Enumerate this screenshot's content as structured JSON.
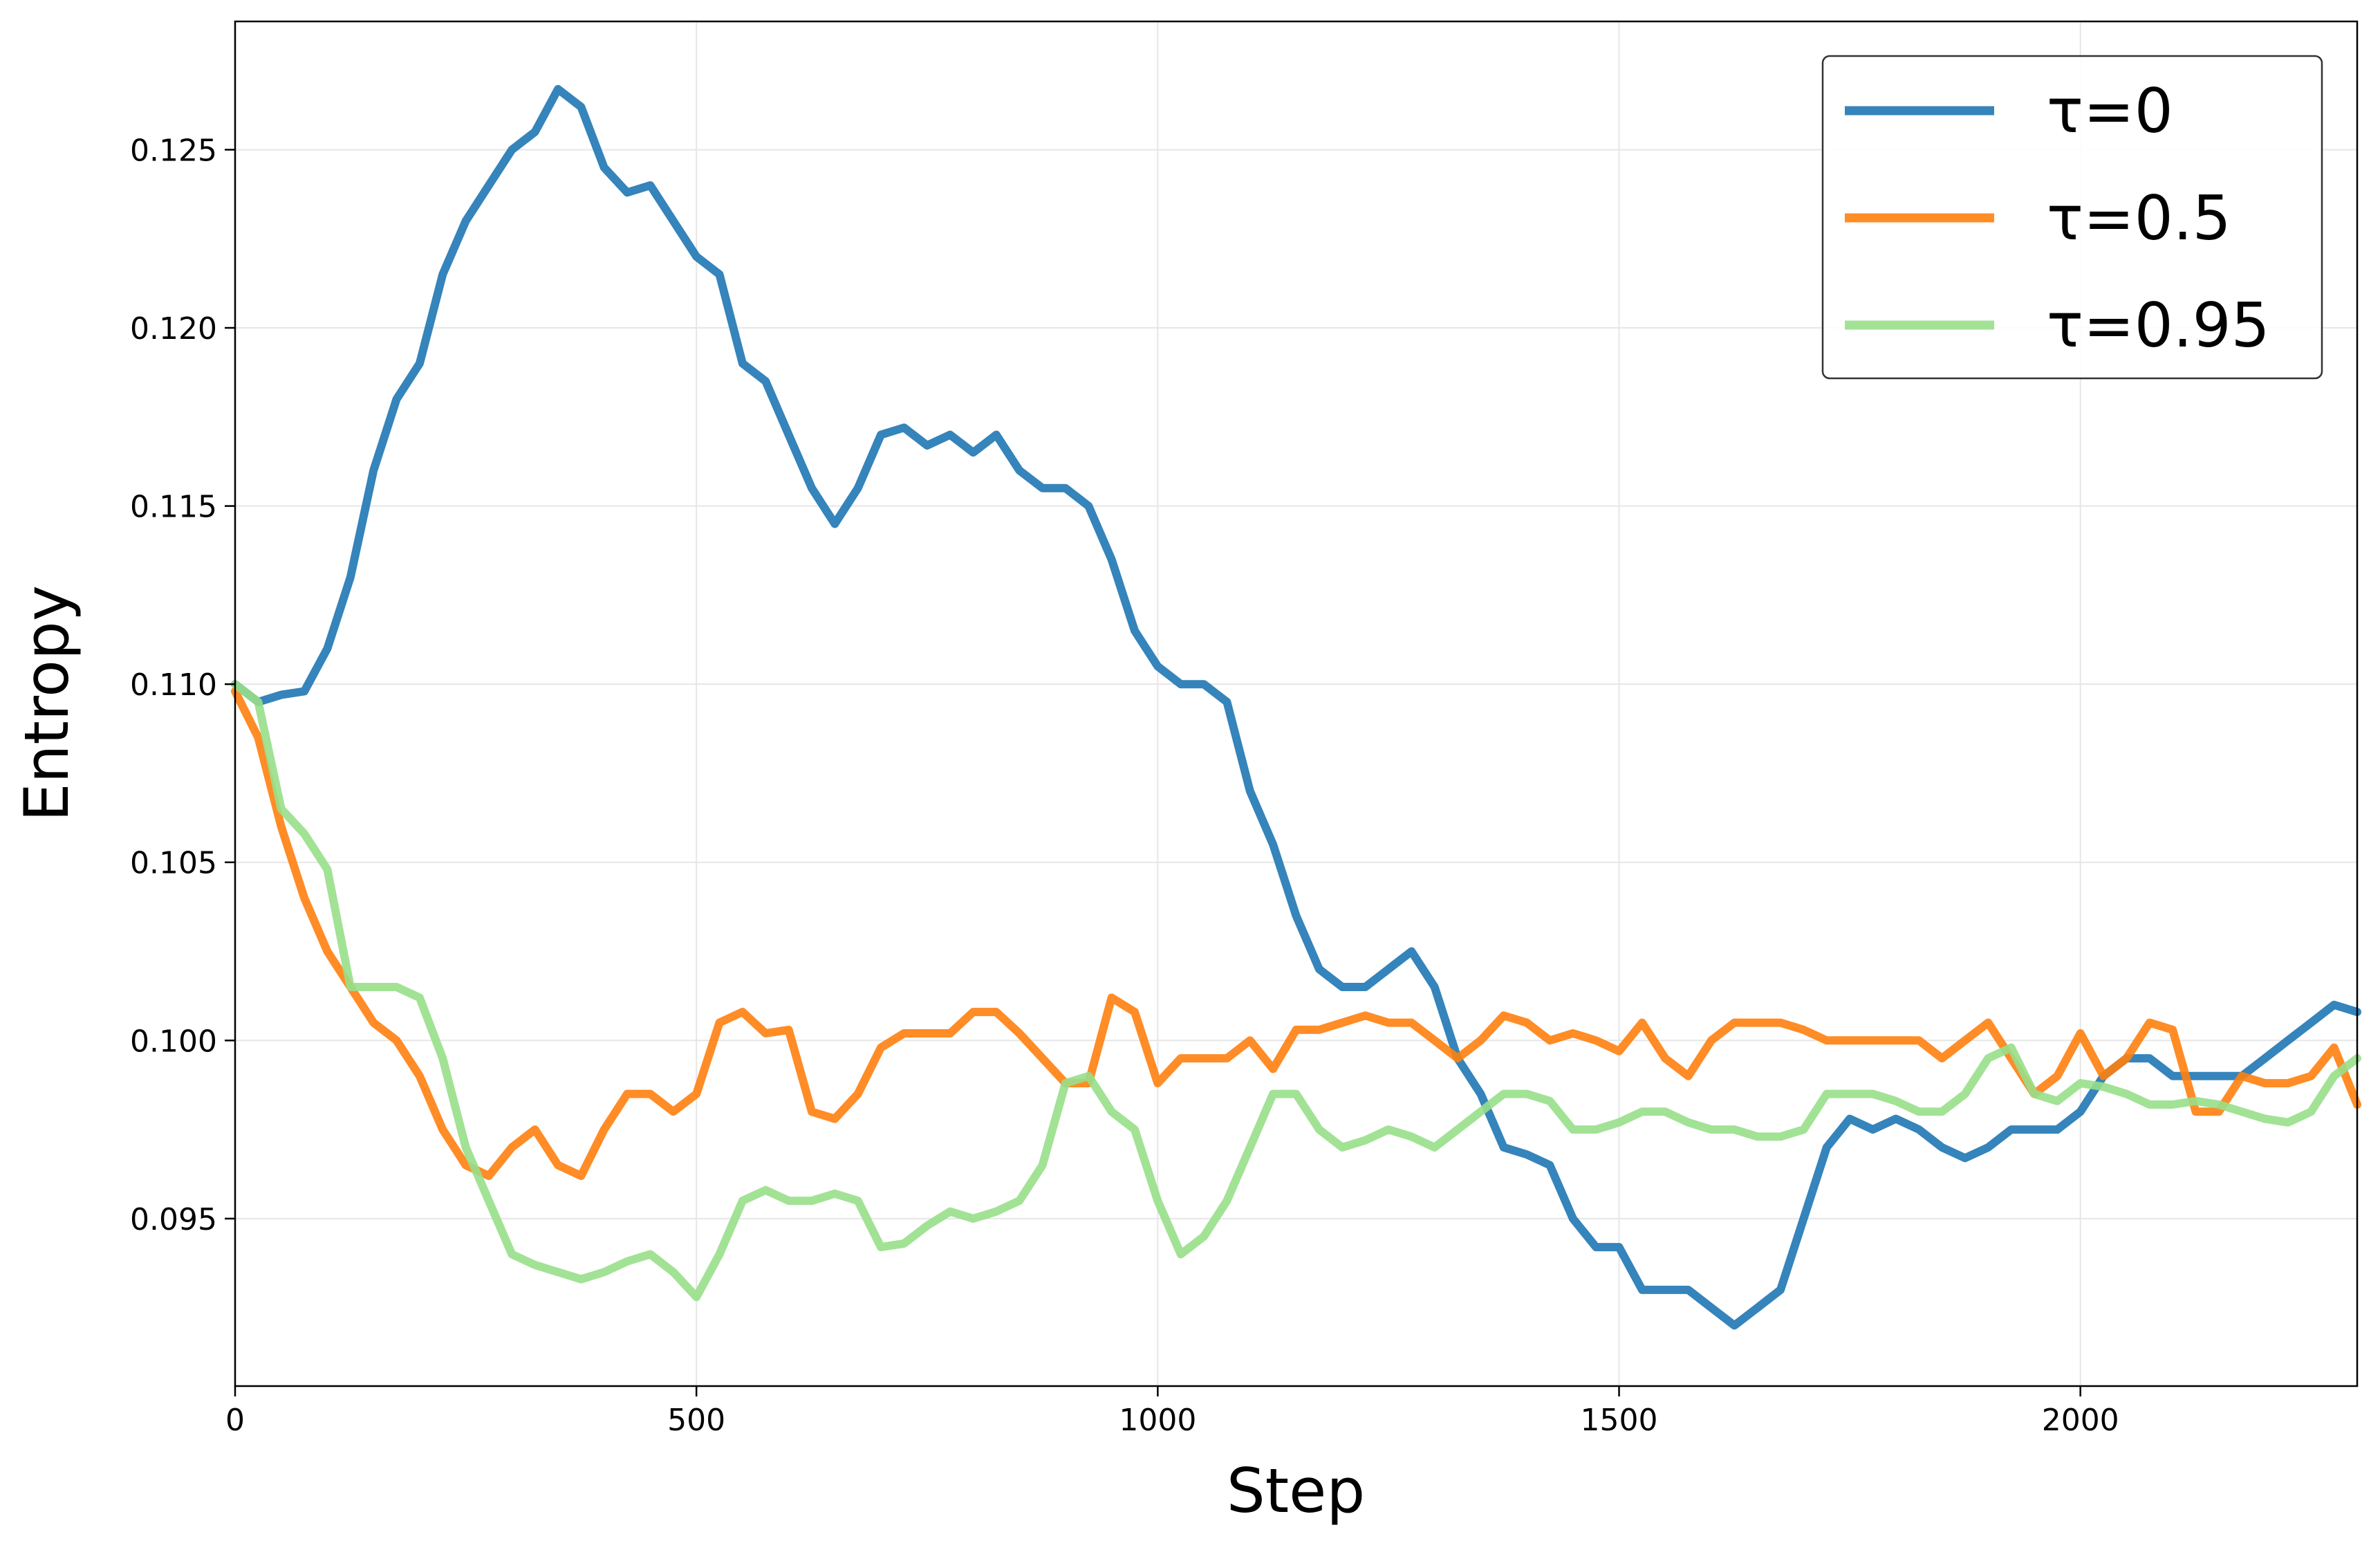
{
  "chart_data": {
    "type": "line",
    "title": "",
    "xlabel": "Step",
    "ylabel": "Entropy",
    "xlim": [
      0,
      2300
    ],
    "ylim": [
      0.0903,
      0.1286
    ],
    "xticks": [
      0,
      500,
      1000,
      1500,
      2000
    ],
    "xtick_labels": [
      "0",
      "500",
      "1000",
      "1500",
      "2000"
    ],
    "yticks": [
      0.095,
      0.1,
      0.105,
      0.11,
      0.115,
      0.12,
      0.125
    ],
    "ytick_labels": [
      "0.095",
      "0.100",
      "0.105",
      "0.110",
      "0.115",
      "0.120",
      "0.125"
    ],
    "grid": true,
    "legend_position": "top-right",
    "x": [
      0,
      25,
      50,
      75,
      100,
      125,
      150,
      175,
      200,
      225,
      250,
      275,
      300,
      325,
      350,
      375,
      400,
      425,
      450,
      475,
      500,
      525,
      550,
      575,
      600,
      625,
      650,
      675,
      700,
      725,
      750,
      775,
      800,
      825,
      850,
      875,
      900,
      925,
      950,
      975,
      1000,
      1025,
      1050,
      1075,
      1100,
      1125,
      1150,
      1175,
      1200,
      1225,
      1250,
      1275,
      1300,
      1325,
      1350,
      1375,
      1400,
      1425,
      1450,
      1475,
      1500,
      1525,
      1550,
      1575,
      1600,
      1625,
      1650,
      1675,
      1700,
      1725,
      1750,
      1775,
      1800,
      1825,
      1850,
      1875,
      1900,
      1925,
      1950,
      1975,
      2000,
      2025,
      2050,
      2075,
      2100,
      2125,
      2150,
      2175,
      2200,
      2225,
      2250,
      2275,
      2300
    ],
    "series": [
      {
        "name": "τ=0",
        "color": "#1f77b4",
        "values": [
          0.11,
          0.1095,
          0.1097,
          0.1098,
          0.111,
          0.113,
          0.116,
          0.118,
          0.119,
          0.1215,
          0.123,
          0.124,
          0.125,
          0.1255,
          0.1267,
          0.1262,
          0.1245,
          0.1238,
          0.124,
          0.123,
          0.122,
          0.1215,
          0.119,
          0.1185,
          0.117,
          0.1155,
          0.1145,
          0.1155,
          0.117,
          0.1172,
          0.1167,
          0.117,
          0.1165,
          0.117,
          0.116,
          0.1155,
          0.1155,
          0.115,
          0.1135,
          0.1115,
          0.1105,
          0.11,
          0.11,
          0.1095,
          0.107,
          0.1055,
          0.1035,
          0.102,
          0.1015,
          0.1015,
          0.102,
          0.1025,
          0.1015,
          0.0995,
          0.0985,
          0.097,
          0.0968,
          0.0965,
          0.095,
          0.0942,
          0.0942,
          0.093,
          0.093,
          0.093,
          0.0925,
          0.092,
          0.0925,
          0.093,
          0.095,
          0.097,
          0.0978,
          0.0975,
          0.0978,
          0.0975,
          0.097,
          0.0967,
          0.097,
          0.0975,
          0.0975,
          0.0975,
          0.098,
          0.099,
          0.0995,
          0.0995,
          0.099,
          0.099,
          0.099,
          0.099,
          0.0995,
          0.1,
          0.1005,
          0.101,
          0.1008
        ]
      },
      {
        "name": "τ=0.5",
        "color": "#ff7f0e",
        "values": [
          0.1098,
          0.1085,
          0.106,
          0.104,
          0.1025,
          0.1015,
          0.1005,
          0.1,
          0.099,
          0.0975,
          0.0965,
          0.0962,
          0.097,
          0.0975,
          0.0965,
          0.0962,
          0.0975,
          0.0985,
          0.0985,
          0.098,
          0.0985,
          0.1005,
          0.1008,
          0.1002,
          0.1003,
          0.098,
          0.0978,
          0.0985,
          0.0998,
          0.1002,
          0.1002,
          0.1002,
          0.1008,
          0.1008,
          0.1002,
          0.0995,
          0.0988,
          0.0988,
          0.1012,
          0.1008,
          0.0988,
          0.0995,
          0.0995,
          0.0995,
          0.1,
          0.0992,
          0.1003,
          0.1003,
          0.1005,
          0.1007,
          0.1005,
          0.1005,
          0.1,
          0.0995,
          0.1,
          0.1007,
          0.1005,
          0.1,
          0.1002,
          0.1,
          0.0997,
          0.1005,
          0.0995,
          0.099,
          0.1,
          0.1005,
          0.1005,
          0.1005,
          0.1003,
          0.1,
          0.1,
          0.1,
          0.1,
          0.1,
          0.0995,
          0.1,
          0.1005,
          0.0995,
          0.0985,
          0.099,
          0.1002,
          0.099,
          0.0995,
          0.1005,
          0.1003,
          0.098,
          0.098,
          0.099,
          0.0988,
          0.0988,
          0.099,
          0.0998,
          0.0982
        ]
      },
      {
        "name": "τ=0.95",
        "color": "#98df8a",
        "values": [
          0.11,
          0.1095,
          0.1065,
          0.1058,
          0.1048,
          0.1015,
          0.1015,
          0.1015,
          0.1012,
          0.0995,
          0.097,
          0.0955,
          0.094,
          0.0937,
          0.0935,
          0.0933,
          0.0935,
          0.0938,
          0.094,
          0.0935,
          0.0928,
          0.094,
          0.0955,
          0.0958,
          0.0955,
          0.0955,
          0.0957,
          0.0955,
          0.0942,
          0.0943,
          0.0948,
          0.0952,
          0.095,
          0.0952,
          0.0955,
          0.0965,
          0.0988,
          0.099,
          0.098,
          0.0975,
          0.0955,
          0.094,
          0.0945,
          0.0955,
          0.097,
          0.0985,
          0.0985,
          0.0975,
          0.097,
          0.0972,
          0.0975,
          0.0973,
          0.097,
          0.0975,
          0.098,
          0.0985,
          0.0985,
          0.0983,
          0.0975,
          0.0975,
          0.0977,
          0.098,
          0.098,
          0.0977,
          0.0975,
          0.0975,
          0.0973,
          0.0973,
          0.0975,
          0.0985,
          0.0985,
          0.0985,
          0.0983,
          0.098,
          0.098,
          0.0985,
          0.0995,
          0.0998,
          0.0985,
          0.0983,
          0.0988,
          0.0987,
          0.0985,
          0.0982,
          0.0982,
          0.0983,
          0.0982,
          0.098,
          0.0978,
          0.0977,
          0.098,
          0.099,
          0.0995
        ]
      }
    ]
  }
}
